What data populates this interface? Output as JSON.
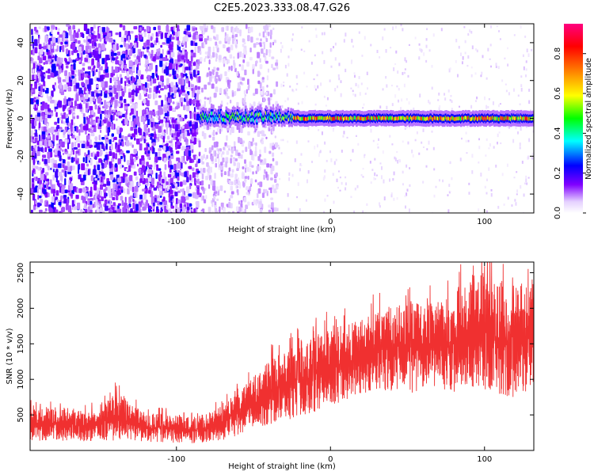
{
  "title": "C2E5.2023.333.08.47.G26",
  "chart_data": [
    {
      "type": "heatmap",
      "xlabel": "Height of straight line (km)",
      "ylabel": "Frequency (Hz)",
      "xlim": [
        -195,
        132
      ],
      "ylim": [
        -50,
        50
      ],
      "xticks": [
        -100,
        0,
        100
      ],
      "xtick_labels": [
        "-100",
        "0",
        "100"
      ],
      "yticks": [
        -40,
        -20,
        0,
        20,
        40
      ],
      "ytick_labels": [
        "-40",
        "-20",
        "0",
        "20",
        "40"
      ],
      "colorbar": {
        "label": "Normalized spectral amplitude",
        "range": [
          0,
          0.95
        ],
        "ticks": [
          0.0,
          0.2,
          0.4,
          0.6,
          0.8
        ],
        "tick_labels": [
          "0.0",
          "0.2",
          "0.4",
          "0.6",
          "0.8"
        ],
        "colors": [
          "#ffffff",
          "#8000ff",
          "#0000ff",
          "#00ffff",
          "#00ff00",
          "#ffff00",
          "#ff8000",
          "#ff0000",
          "#ff0080"
        ]
      },
      "regions": [
        {
          "name": "noise",
          "x_range": [
            -195,
            -85
          ],
          "level": 0.15
        },
        {
          "name": "faint-noise",
          "x_range": [
            -85,
            -35
          ],
          "level": 0.06
        },
        {
          "name": "signal",
          "x_range": [
            -85,
            132
          ],
          "frequency": 0,
          "level": 0.75
        }
      ],
      "grid": false
    },
    {
      "type": "line",
      "xlabel": "Height of straight line (km)",
      "ylabel": "SNR (10 * v/v)",
      "xlim": [
        -195,
        132
      ],
      "ylim": [
        0,
        2650
      ],
      "xticks": [
        -100,
        0,
        100
      ],
      "xtick_labels": [
        "-100",
        "0",
        "100"
      ],
      "yticks": [
        500,
        1000,
        1500,
        2000,
        2500
      ],
      "ytick_labels": [
        "500",
        "1000",
        "1500",
        "2000",
        "2500"
      ],
      "color": "#f03030",
      "envelope": {
        "x": [
          -195,
          -150,
          -140,
          -120,
          -90,
          -75,
          -60,
          -45,
          -30,
          -15,
          0,
          15,
          30,
          45,
          60,
          75,
          90,
          100,
          110,
          120,
          132
        ],
        "low": [
          130,
          130,
          140,
          120,
          100,
          120,
          200,
          330,
          420,
          500,
          620,
          750,
          850,
          820,
          800,
          820,
          820,
          800,
          760,
          740,
          800
        ],
        "high": [
          600,
          560,
          800,
          540,
          460,
          560,
          800,
          1150,
          1450,
          1600,
          1700,
          1850,
          1950,
          2100,
          2050,
          2150,
          2350,
          2550,
          2400,
          2300,
          2500
        ]
      },
      "grid": false
    }
  ]
}
